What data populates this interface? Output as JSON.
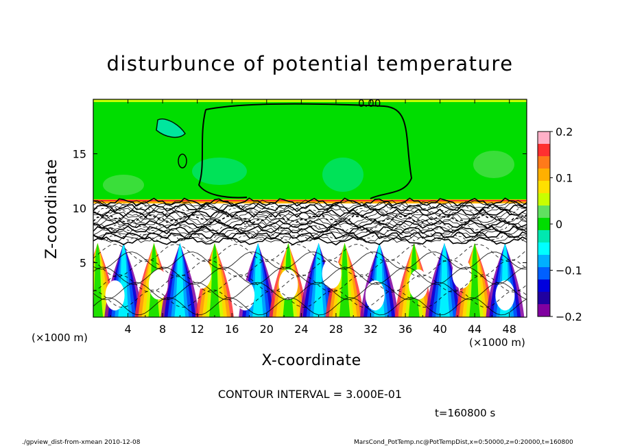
{
  "chart_data": {
    "type": "heatmap",
    "title": "disturbunce of potential temperature",
    "xlabel": "X-coordinate",
    "ylabel": "Z-coordinate",
    "x_unit_label": "(×1000 m)",
    "xlim": [
      0,
      50
    ],
    "ylim": [
      0,
      20
    ],
    "x_ticks": [
      "4",
      "8",
      "12",
      "16",
      "20",
      "24",
      "28",
      "32",
      "36",
      "40",
      "44",
      "48"
    ],
    "y_ticks": [
      "5",
      "10",
      "15"
    ],
    "colorbar": {
      "range": [
        -0.2,
        0.2
      ],
      "tick_labels": [
        "0.2",
        "0.1",
        "0",
        "−0.1",
        "−0.2"
      ],
      "colors_top_to_bottom": [
        "#ffb0c8",
        "#ff3030",
        "#ff7a1a",
        "#ffb000",
        "#ffe000",
        "#c8ff00",
        "#60e060",
        "#00dd00",
        "#00e8b0",
        "#00ffff",
        "#00b0ff",
        "#0060ff",
        "#0000dd",
        "#2000a0",
        "#8000a0"
      ]
    },
    "regions": [
      {
        "z_range": [
          10.8,
          20
        ],
        "value": 0,
        "description": "upper layer near zero"
      },
      {
        "z_range": [
          10.5,
          10.9
        ],
        "value": 0.15,
        "description": "thin warm band"
      },
      {
        "z_range": [
          6.8,
          10.5
        ],
        "value": 0,
        "description": "dense contour zone"
      },
      {
        "z_range": [
          0,
          6.8
        ],
        "value_range": [
          -0.2,
          0.2
        ],
        "description": "convective plumes"
      }
    ],
    "annotation": "0.00",
    "contour_interval": "CONTOUR INTERVAL = 3.000E-01",
    "time_label": "t=160800 s"
  },
  "footer": {
    "left": "./gpview_dist-from-xmean  2010-12-08",
    "right": "MarsCond_PotTemp.nc@PotTempDist,x=0:50000,z=0:20000,t=160800"
  }
}
